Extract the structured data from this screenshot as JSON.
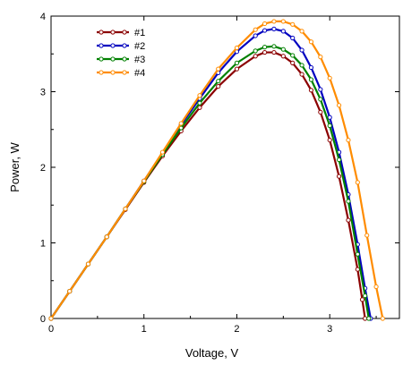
{
  "chart_data": {
    "type": "line",
    "title": "",
    "xlabel": "Voltage, V",
    "ylabel": "Power, W",
    "xlim": [
      0,
      3.75
    ],
    "ylim": [
      0,
      4
    ],
    "x_ticks": [
      0,
      1,
      2,
      3
    ],
    "y_ticks": [
      0,
      1,
      2,
      3,
      4
    ],
    "grid": false,
    "legend": {
      "position": "top-left",
      "entries": [
        "#1",
        "#2",
        "#3",
        "#4"
      ]
    },
    "series": [
      {
        "name": "#1",
        "color": "#8b0000",
        "marker": "open-circle",
        "x": [
          0,
          0.2,
          0.4,
          0.6,
          0.8,
          1.0,
          1.2,
          1.4,
          1.6,
          1.8,
          2.0,
          2.2,
          2.3,
          2.4,
          2.5,
          2.6,
          2.7,
          2.8,
          2.9,
          3.0,
          3.1,
          3.2,
          3.3,
          3.35,
          3.38
        ],
        "y": [
          0,
          0.36,
          0.72,
          1.08,
          1.44,
          1.8,
          2.15,
          2.48,
          2.79,
          3.07,
          3.3,
          3.47,
          3.52,
          3.52,
          3.47,
          3.38,
          3.23,
          3.02,
          2.73,
          2.36,
          1.88,
          1.3,
          0.65,
          0.25,
          0
        ]
      },
      {
        "name": "#2",
        "color": "#0000c0",
        "marker": "open-circle",
        "x": [
          0,
          0.2,
          0.4,
          0.6,
          0.8,
          1.0,
          1.2,
          1.4,
          1.6,
          1.8,
          2.0,
          2.2,
          2.3,
          2.4,
          2.5,
          2.6,
          2.7,
          2.8,
          2.9,
          3.0,
          3.1,
          3.2,
          3.3,
          3.38,
          3.44
        ],
        "y": [
          0,
          0.36,
          0.72,
          1.08,
          1.45,
          1.82,
          2.19,
          2.56,
          2.91,
          3.25,
          3.53,
          3.74,
          3.81,
          3.83,
          3.8,
          3.71,
          3.55,
          3.32,
          3.03,
          2.66,
          2.2,
          1.64,
          0.98,
          0.4,
          0
        ]
      },
      {
        "name": "#3",
        "color": "#008000",
        "marker": "open-circle",
        "x": [
          0,
          0.2,
          0.4,
          0.6,
          0.8,
          1.0,
          1.2,
          1.4,
          1.6,
          1.8,
          2.0,
          2.2,
          2.3,
          2.4,
          2.5,
          2.6,
          2.7,
          2.8,
          2.9,
          3.0,
          3.1,
          3.2,
          3.3,
          3.38,
          3.42
        ],
        "y": [
          0,
          0.36,
          0.72,
          1.08,
          1.45,
          1.81,
          2.17,
          2.52,
          2.85,
          3.14,
          3.38,
          3.54,
          3.59,
          3.6,
          3.56,
          3.48,
          3.35,
          3.16,
          2.9,
          2.55,
          2.1,
          1.55,
          0.85,
          0.3,
          0
        ]
      },
      {
        "name": "#4",
        "color": "#ff8c00",
        "marker": "open-circle",
        "x": [
          0,
          0.2,
          0.4,
          0.6,
          0.8,
          1.0,
          1.2,
          1.4,
          1.6,
          1.8,
          2.0,
          2.2,
          2.3,
          2.4,
          2.5,
          2.6,
          2.7,
          2.8,
          2.9,
          3.0,
          3.1,
          3.2,
          3.3,
          3.4,
          3.5,
          3.57
        ],
        "y": [
          0,
          0.36,
          0.72,
          1.08,
          1.45,
          1.82,
          2.2,
          2.58,
          2.95,
          3.3,
          3.58,
          3.82,
          3.9,
          3.93,
          3.93,
          3.89,
          3.8,
          3.66,
          3.46,
          3.18,
          2.82,
          2.36,
          1.8,
          1.1,
          0.42,
          0
        ]
      }
    ]
  }
}
